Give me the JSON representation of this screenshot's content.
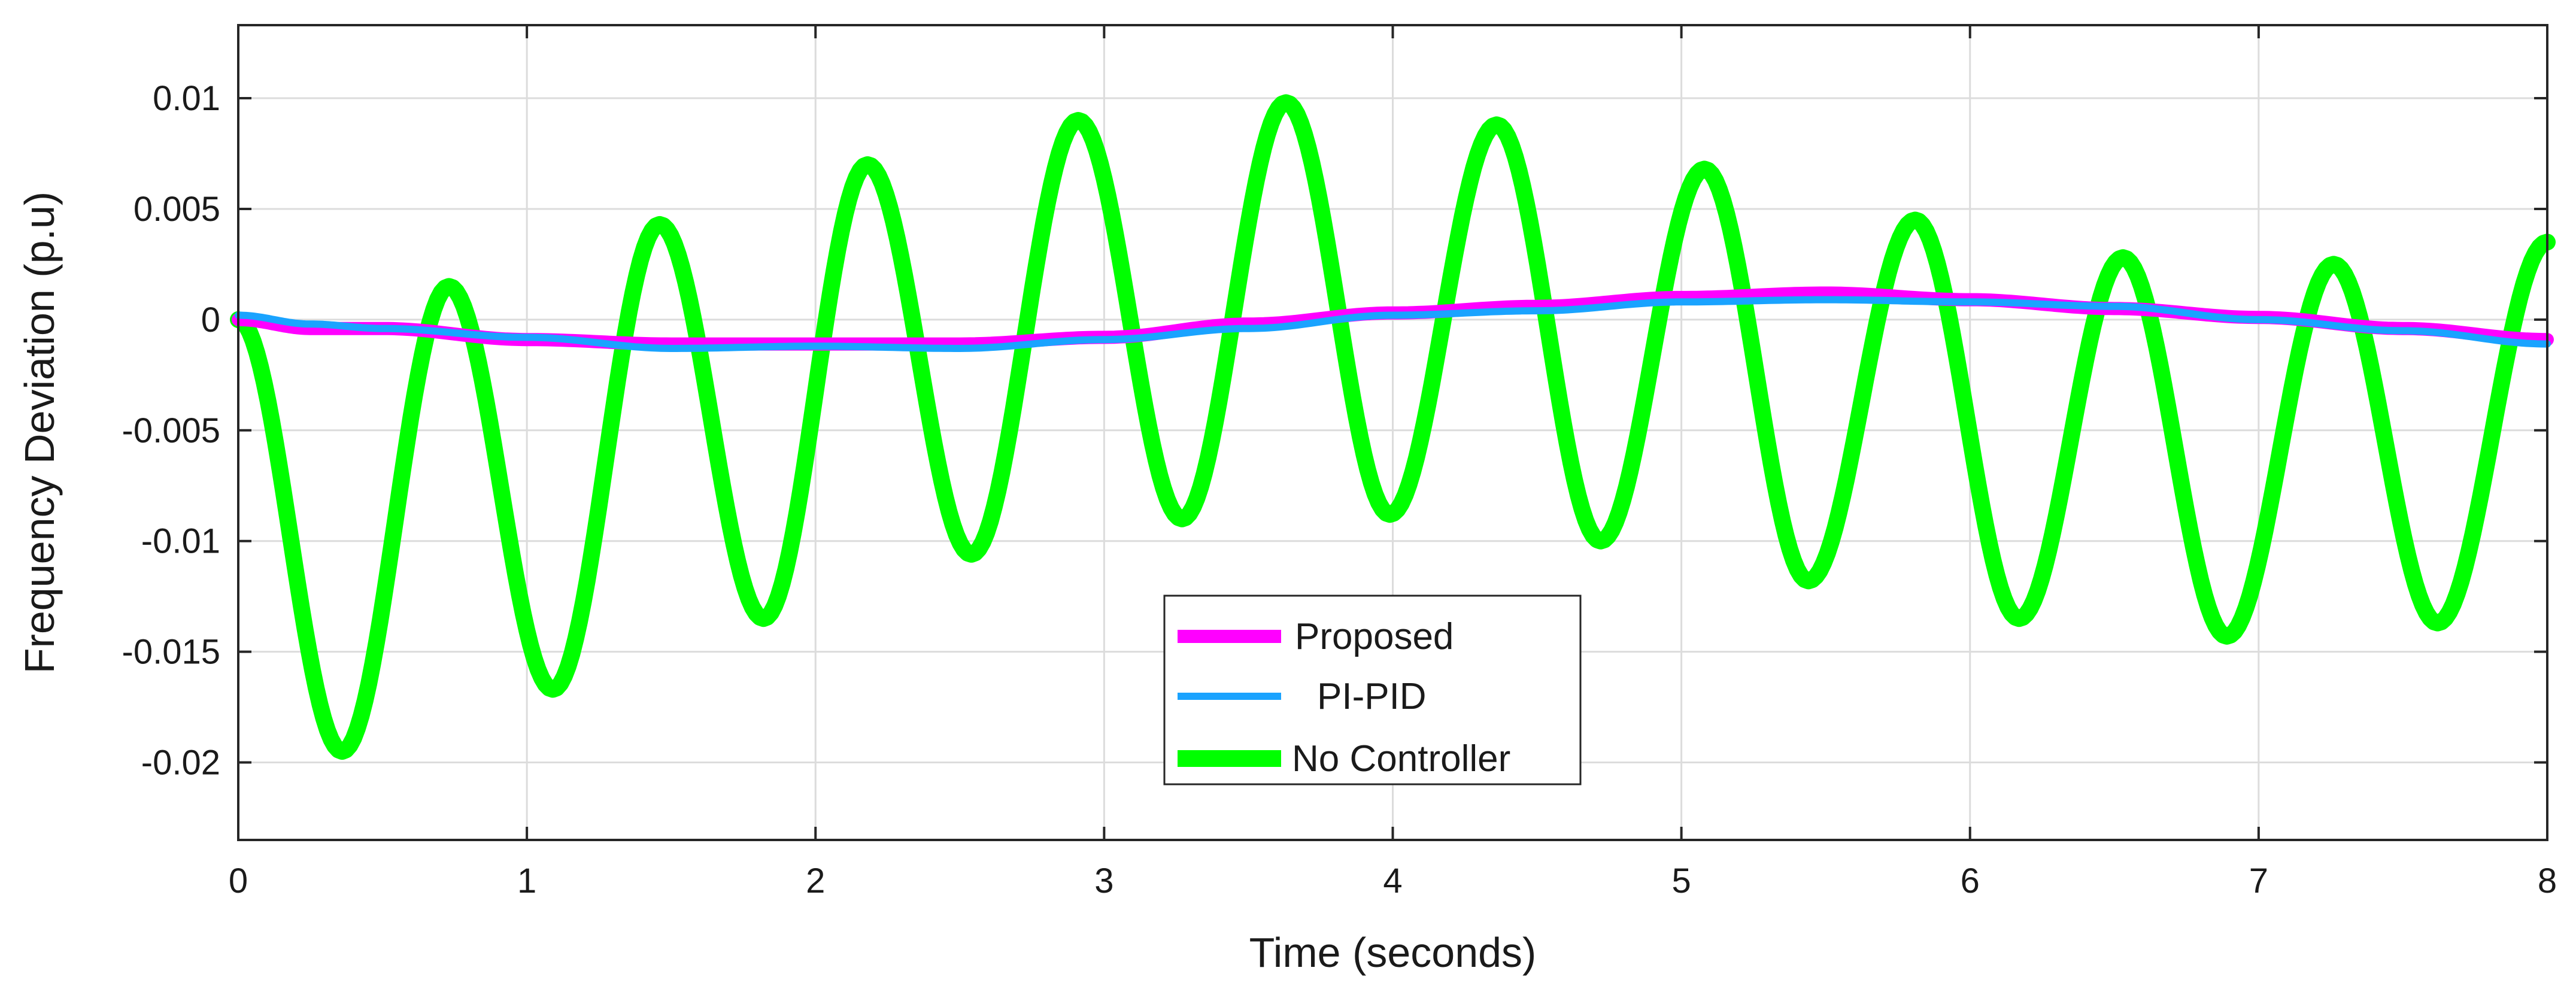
{
  "chart_data": {
    "type": "line",
    "title": "",
    "xlabel": "Time (seconds)",
    "ylabel": "Frequency Deviation (p.u)",
    "xlim": [
      0,
      8
    ],
    "ylim": [
      -0.0235,
      0.0133
    ],
    "x_ticks": [
      0,
      1,
      2,
      3,
      4,
      5,
      6,
      7,
      8
    ],
    "x_tick_labels": [
      "0",
      "1",
      "2",
      "3",
      "4",
      "5",
      "6",
      "7",
      "8"
    ],
    "y_ticks": [
      0.01,
      0.005,
      0,
      -0.005,
      -0.01,
      -0.015,
      -0.02
    ],
    "y_tick_labels": [
      "0.01",
      "0.005",
      "0",
      "-0.005",
      "-0.01",
      "-0.015",
      "-0.02"
    ],
    "grid": true,
    "legend_position": "bottom-center",
    "series": [
      {
        "name": "Proposed",
        "color": "#ff00ff",
        "x": [
          0,
          0.25,
          0.5,
          1,
          1.5,
          2,
          2.5,
          3,
          3.5,
          4,
          4.5,
          5,
          5.5,
          6,
          6.5,
          7,
          7.5,
          8
        ],
        "values": [
          0,
          -0.0004,
          -0.0004,
          -0.0009,
          -0.0011,
          -0.0011,
          -0.0011,
          -0.0008,
          -0.0002,
          0.0003,
          0.0006,
          0.001,
          0.0012,
          0.0009,
          0.0005,
          0.0001,
          -0.0004,
          -0.0009
        ]
      },
      {
        "name": "PI-PID",
        "color": "#1aa3ff",
        "x": [
          0,
          0.25,
          0.5,
          1,
          1.5,
          2,
          2.5,
          3,
          3.5,
          4,
          4.5,
          5,
          5.5,
          6,
          6.5,
          7,
          7.5,
          8
        ],
        "values": [
          0.0002,
          -0.0002,
          -0.0004,
          -0.0008,
          -0.0013,
          -0.0012,
          -0.0013,
          -0.0009,
          -0.0004,
          0.0002,
          0.0004,
          0.0008,
          0.0009,
          0.0008,
          0.0006,
          0,
          -0.0005,
          -0.0011
        ]
      },
      {
        "name": "No Controller",
        "color": "#00ff00",
        "x": [
          0,
          0.36,
          0.73,
          1.09,
          1.46,
          1.82,
          2.18,
          2.54,
          2.91,
          3.27,
          3.63,
          3.99,
          4.36,
          4.72,
          5.08,
          5.44,
          5.81,
          6.17,
          6.53,
          6.89,
          7.26,
          7.62,
          8
        ],
        "values": [
          0,
          -0.0195,
          0.0015,
          -0.0167,
          0.0043,
          -0.0135,
          0.007,
          -0.0106,
          0.009,
          -0.009,
          0.0098,
          -0.0088,
          0.0088,
          -0.01,
          0.0068,
          -0.0118,
          0.0045,
          -0.0135,
          0.0028,
          -0.0143,
          0.0025,
          -0.0137,
          0.0035
        ]
      }
    ]
  }
}
